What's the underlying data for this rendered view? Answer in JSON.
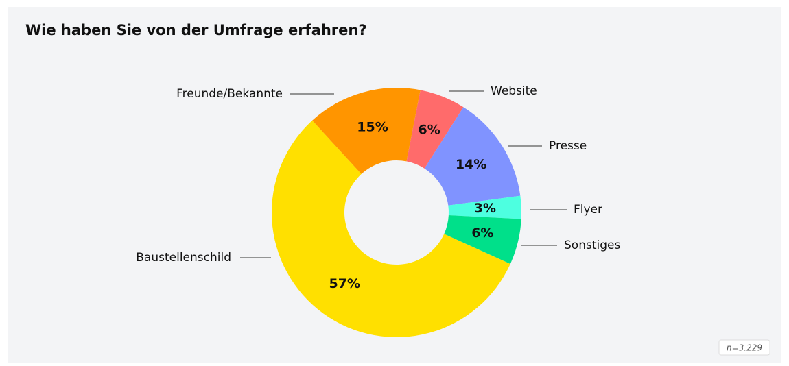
{
  "chart_data": {
    "type": "donut",
    "title": "Wie haben Sie von der Umfrage erfahren?",
    "categories": [
      "Website",
      "Presse",
      "Flyer",
      "Sonstiges",
      "Baustellenschild",
      "Freunde/Bekannte"
    ],
    "values": [
      6,
      14,
      3,
      6,
      57,
      15
    ],
    "value_labels": [
      "6%",
      "14%",
      "3%",
      "6%",
      "57%",
      "15%"
    ],
    "colors": [
      "#ff6b6b",
      "#8093ff",
      "#4dffe0",
      "#00e08a",
      "#ffe000",
      "#ff9500"
    ],
    "note": "n=3.229"
  }
}
